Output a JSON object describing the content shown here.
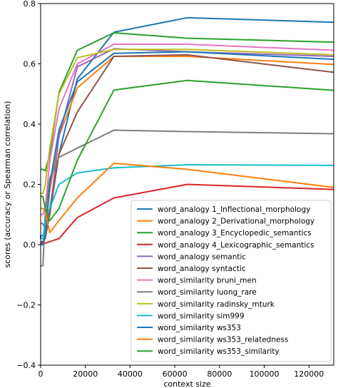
{
  "chart_data": {
    "type": "line",
    "xlabel": "context size",
    "ylabel": "scores (accuracy or Spearman correlation)",
    "xlim": [
      0,
      131072
    ],
    "ylim": [
      -0.4,
      0.8
    ],
    "xticks": [
      0,
      20000,
      40000,
      60000,
      80000,
      100000,
      120000
    ],
    "yticks": [
      -0.4,
      -0.2,
      0.0,
      0.2,
      0.4,
      0.6,
      0.8
    ],
    "xtick_labels": [
      "0",
      "20000",
      "40000",
      "60000",
      "80000",
      "100000",
      "120000"
    ],
    "ytick_labels": [
      "−0.4",
      "−0.2",
      "0.0",
      "0.2",
      "0.4",
      "0.6",
      "0.8"
    ],
    "grid": false,
    "legend_position": "lower-right",
    "x": [
      1,
      2,
      4,
      8,
      16,
      32,
      64,
      128,
      256,
      512,
      1024,
      2048,
      4096,
      8192,
      16384,
      32768,
      65536,
      131072
    ],
    "series": [
      {
        "name": "word_analogy 1_Inflectional_morphology",
        "color": "#1f77b4",
        "values": [
          0.02,
          0.03,
          0.03,
          0.03,
          0.03,
          0.03,
          0.03,
          0.03,
          0.03,
          0.03,
          0.03,
          0.05,
          0.12,
          0.3,
          0.55,
          0.705,
          0.753,
          0.738
        ]
      },
      {
        "name": "word_analogy 2_Derivational_morphology",
        "color": "#ff7f0e",
        "values": [
          0.005,
          0.005,
          0.005,
          0.005,
          0.005,
          0.005,
          0.005,
          0.005,
          0.005,
          0.005,
          0.005,
          0.05,
          0.18,
          0.36,
          0.52,
          0.625,
          0.625,
          0.598
        ]
      },
      {
        "name": "word_analogy 3_Encyclopedic_semantics",
        "color": "#2ca02c",
        "values": [
          0.25,
          0.25,
          0.25,
          0.25,
          0.25,
          0.25,
          0.25,
          0.25,
          0.25,
          0.25,
          0.25,
          0.245,
          0.3,
          0.505,
          0.645,
          0.703,
          0.685,
          0.672
        ]
      },
      {
        "name": "word_analogy 4_Lexicographic_semantics",
        "color": "#d62728",
        "values": [
          0.005,
          0.005,
          0.005,
          0.005,
          0.005,
          0.005,
          0.005,
          0.005,
          0.005,
          0.005,
          0.005,
          0.005,
          0.01,
          0.02,
          0.09,
          0.155,
          0.2,
          0.183
        ]
      },
      {
        "name": "word_analogy semantic",
        "color": "#9467bd",
        "values": [
          0.07,
          0.07,
          0.07,
          0.07,
          0.07,
          0.07,
          0.07,
          0.07,
          0.07,
          0.07,
          0.07,
          0.05,
          0.1,
          0.36,
          0.59,
          0.65,
          0.64,
          0.625
        ]
      },
      {
        "name": "word_analogy syntactic",
        "color": "#8c564b",
        "values": [
          0.01,
          0.01,
          0.01,
          0.01,
          0.01,
          0.01,
          0.01,
          0.01,
          0.01,
          0.01,
          0.01,
          0.02,
          0.1,
          0.3,
          0.44,
          0.625,
          0.63,
          0.572
        ]
      },
      {
        "name": "word_similarity bruni_men",
        "color": "#e377c2",
        "values": [
          0.1,
          0.1,
          0.1,
          0.1,
          0.1,
          0.1,
          0.1,
          0.1,
          0.1,
          0.1,
          0.1,
          0.12,
          0.28,
          0.45,
          0.6,
          0.665,
          0.665,
          0.645
        ]
      },
      {
        "name": "word_similarity luong_rare",
        "color": "#7f7f7f",
        "values": [
          -0.07,
          -0.07,
          -0.07,
          -0.07,
          -0.07,
          -0.07,
          -0.07,
          -0.07,
          -0.07,
          -0.07,
          -0.07,
          0.1,
          0.22,
          0.29,
          0.32,
          0.38,
          0.375,
          0.368
        ]
      },
      {
        "name": "word_similarity radinsky_mturk",
        "color": "#bcbd22",
        "values": [
          0.17,
          0.17,
          0.17,
          0.17,
          0.17,
          0.17,
          0.17,
          0.17,
          0.17,
          0.17,
          0.17,
          0.2,
          0.32,
          0.5,
          0.62,
          0.648,
          0.648,
          0.63
        ]
      },
      {
        "name": "word_similarity sim999",
        "color": "#17becf",
        "values": [
          0.02,
          0.02,
          0.02,
          0.02,
          0.02,
          0.02,
          0.02,
          0.02,
          0.02,
          0.02,
          0.02,
          0.08,
          0.12,
          0.2,
          0.238,
          0.255,
          0.265,
          0.263
        ]
      },
      {
        "name": "word_similarity ws353",
        "color": "#1f77b4",
        "values": [
          0.0,
          0.0,
          0.0,
          0.0,
          0.0,
          0.0,
          0.0,
          0.0,
          0.0,
          0.0,
          0.0,
          0.03,
          0.2,
          0.38,
          0.54,
          0.635,
          0.64,
          0.615
        ]
      },
      {
        "name": "word_similarity ws353_relatedness",
        "color": "#ff7f0e",
        "values": [
          0.12,
          0.12,
          0.12,
          0.12,
          0.12,
          0.12,
          0.12,
          0.12,
          0.12,
          0.12,
          0.12,
          0.11,
          0.04,
          0.08,
          0.155,
          0.27,
          0.25,
          0.19
        ]
      },
      {
        "name": "word_similarity ws353_similarity",
        "color": "#2ca02c",
        "values": [
          0.16,
          0.16,
          0.16,
          0.16,
          0.16,
          0.16,
          0.16,
          0.16,
          0.16,
          0.16,
          0.16,
          0.12,
          0.08,
          0.12,
          0.28,
          0.513,
          0.545,
          0.512
        ]
      }
    ]
  }
}
